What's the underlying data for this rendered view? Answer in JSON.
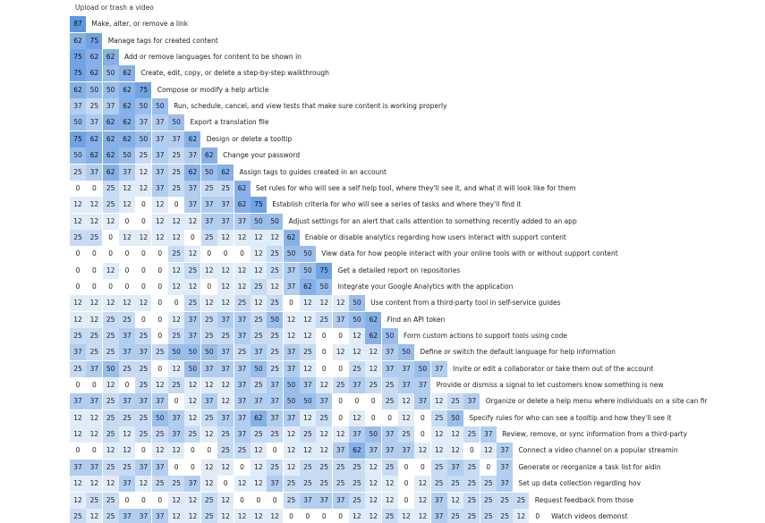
{
  "chart_data": {
    "type": "heatmap",
    "colors": {
      "low": "#ffffff",
      "high": "#5e97e0"
    },
    "rows": [
      {
        "label": "Upload or trash a video",
        "values": []
      },
      {
        "label": "Make, alter, or remove a link",
        "values": [
          87
        ]
      },
      {
        "label": "Manage tags for created content",
        "values": [
          62,
          75
        ]
      },
      {
        "label": "Add or remove languages for content to be shown in",
        "values": [
          75,
          62,
          62
        ]
      },
      {
        "label": "Create, edit, copy, or delete a step-by-step walkthrough",
        "values": [
          75,
          62,
          50,
          62
        ]
      },
      {
        "label": "Compose or modify a help article",
        "values": [
          62,
          50,
          50,
          62,
          75
        ]
      },
      {
        "label": "Run, schedule, cancel, and view tests that make sure content is working properly",
        "values": [
          37,
          25,
          37,
          62,
          50,
          50
        ]
      },
      {
        "label": "Export a translation file",
        "values": [
          50,
          37,
          62,
          62,
          37,
          37,
          50
        ]
      },
      {
        "label": "Design or delete a tooltip",
        "values": [
          75,
          62,
          62,
          62,
          50,
          37,
          37,
          62
        ]
      },
      {
        "label": "Change your password",
        "values": [
          50,
          62,
          62,
          50,
          25,
          37,
          25,
          37,
          62
        ]
      },
      {
        "label": "Assign tags to guides created in an account",
        "values": [
          25,
          37,
          62,
          37,
          12,
          37,
          25,
          62,
          50,
          62
        ]
      },
      {
        "label": "Set rules for who will see a self help tool, where they'll see it, and what it will look like for them",
        "values": [
          0,
          0,
          25,
          12,
          12,
          37,
          25,
          37,
          25,
          25,
          62
        ]
      },
      {
        "label": "Establish criteria for who will see a series of tasks and where they'll find it",
        "values": [
          12,
          12,
          25,
          12,
          0,
          12,
          0,
          37,
          37,
          37,
          62,
          75
        ]
      },
      {
        "label": "Adjust settings for an alert that calls attention to something recently added to an app",
        "values": [
          12,
          12,
          12,
          0,
          0,
          12,
          12,
          12,
          37,
          37,
          37,
          50,
          50
        ]
      },
      {
        "label": "Enable or disable analytics regarding how users interact with support content",
        "values": [
          25,
          25,
          0,
          12,
          12,
          12,
          12,
          0,
          25,
          12,
          12,
          12,
          12,
          62
        ]
      },
      {
        "label": "View data for how people interact with your online tools with or without support content",
        "values": [
          0,
          0,
          0,
          0,
          0,
          0,
          25,
          12,
          0,
          0,
          0,
          12,
          25,
          50,
          50
        ]
      },
      {
        "label": "Get a detailed report on repositories",
        "values": [
          0,
          0,
          12,
          0,
          0,
          0,
          12,
          25,
          12,
          12,
          12,
          12,
          25,
          37,
          50,
          75
        ]
      },
      {
        "label": "Integrate your Google Analytics with the application",
        "values": [
          0,
          0,
          0,
          0,
          0,
          0,
          12,
          12,
          0,
          12,
          12,
          25,
          12,
          37,
          62,
          50
        ]
      },
      {
        "label": "Use content from a third-party tool in self-service guides",
        "values": [
          12,
          12,
          12,
          12,
          12,
          0,
          0,
          25,
          12,
          12,
          25,
          12,
          25,
          0,
          12,
          12,
          12,
          50
        ]
      },
      {
        "label": "Find an API token",
        "values": [
          12,
          12,
          25,
          25,
          0,
          0,
          12,
          37,
          25,
          37,
          37,
          25,
          50,
          12,
          12,
          25,
          37,
          50,
          62
        ]
      },
      {
        "label": "Form custom actions to support tools using code",
        "values": [
          25,
          25,
          25,
          37,
          25,
          0,
          25,
          37,
          25,
          25,
          37,
          25,
          25,
          12,
          12,
          0,
          0,
          12,
          62,
          50
        ]
      },
      {
        "label": "Define or switch the default language for help information",
        "values": [
          37,
          25,
          25,
          37,
          37,
          25,
          50,
          50,
          50,
          37,
          25,
          37,
          25,
          37,
          25,
          0,
          12,
          12,
          12,
          37,
          50
        ]
      },
      {
        "label": "Invite or edit a collaborator or take them out of the account",
        "values": [
          25,
          37,
          50,
          25,
          25,
          0,
          12,
          50,
          37,
          37,
          37,
          50,
          25,
          37,
          12,
          0,
          0,
          25,
          12,
          37,
          37,
          50,
          37
        ]
      },
      {
        "label": "Provide or dismiss a signal to let customers know something is new",
        "values": [
          0,
          0,
          12,
          0,
          25,
          12,
          25,
          12,
          12,
          12,
          37,
          25,
          37,
          50,
          37,
          12,
          25,
          37,
          25,
          25,
          37,
          37
        ]
      },
      {
        "label": "Organize or delete a help menu where individuals on a site can fir",
        "values": [
          37,
          37,
          25,
          37,
          37,
          37,
          0,
          12,
          37,
          12,
          37,
          37,
          37,
          50,
          50,
          37,
          0,
          0,
          0,
          25,
          12,
          37,
          12,
          25,
          37
        ]
      },
      {
        "label": "Specify rules for who can see a tooltip and how they'll see it",
        "values": [
          12,
          12,
          25,
          25,
          25,
          50,
          37,
          12,
          25,
          37,
          37,
          62,
          37,
          37,
          12,
          25,
          0,
          12,
          0,
          0,
          12,
          0,
          25,
          50
        ]
      },
      {
        "label": "Review, remove, or sync information from a third-party",
        "values": [
          12,
          12,
          25,
          12,
          25,
          25,
          37,
          25,
          12,
          25,
          37,
          25,
          25,
          12,
          25,
          12,
          12,
          37,
          50,
          37,
          25,
          0,
          12,
          12,
          25,
          37
        ]
      },
      {
        "label": "Connect a video channel on a popular streamin",
        "values": [
          0,
          0,
          12,
          12,
          0,
          12,
          12,
          0,
          0,
          25,
          25,
          12,
          0,
          12,
          12,
          12,
          37,
          62,
          37,
          37,
          37,
          12,
          12,
          12,
          0,
          12,
          37
        ]
      },
      {
        "label": "Generate or reorganize a task list for aidin",
        "values": [
          37,
          37,
          25,
          25,
          37,
          37,
          0,
          0,
          12,
          12,
          0,
          12,
          25,
          12,
          25,
          25,
          25,
          25,
          12,
          25,
          0,
          0,
          25,
          37,
          25,
          0,
          37
        ]
      },
      {
        "label": "Set up data collection regarding hov",
        "values": [
          12,
          12,
          12,
          37,
          12,
          25,
          25,
          37,
          12,
          0,
          12,
          12,
          37,
          25,
          25,
          25,
          25,
          25,
          12,
          12,
          0,
          12,
          25,
          25,
          25,
          25,
          37
        ]
      },
      {
        "label": "Request feedback from those",
        "values": [
          12,
          25,
          25,
          0,
          0,
          0,
          12,
          12,
          25,
          12,
          0,
          0,
          0,
          25,
          37,
          37,
          37,
          25,
          12,
          12,
          0,
          12,
          37,
          12,
          25,
          25,
          25,
          25
        ]
      },
      {
        "label": "Watch videos demonst",
        "values": [
          25,
          12,
          25,
          37,
          37,
          37,
          12,
          12,
          25,
          12,
          12,
          12,
          12,
          0,
          0,
          0,
          0,
          12,
          12,
          25,
          12,
          12,
          37,
          25,
          25,
          25,
          25,
          12,
          0
        ]
      }
    ]
  }
}
